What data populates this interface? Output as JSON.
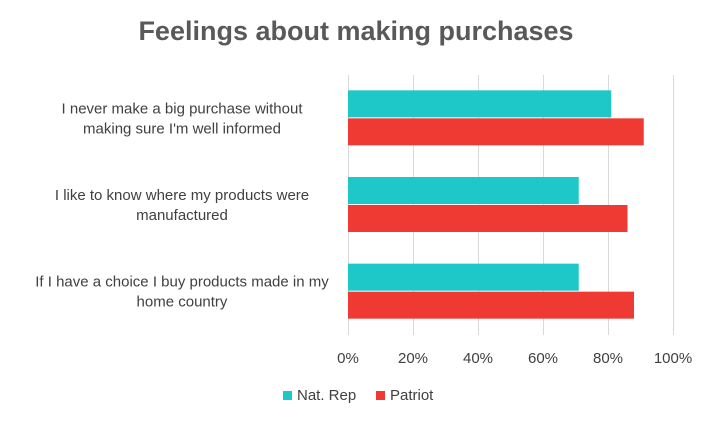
{
  "chart_data": {
    "type": "bar",
    "orientation": "horizontal",
    "title": "Feelings about making purchases",
    "categories": [
      [
        "I never make a big purchase without",
        "making sure I'm well informed"
      ],
      [
        "I like to know where my products were",
        "manufactured"
      ],
      [
        "If I have a choice I buy products made in my",
        "home country"
      ]
    ],
    "series": [
      {
        "name": "Nat. Rep",
        "color": "#1fc8c8",
        "values": [
          81,
          71,
          71
        ]
      },
      {
        "name": "Patriot",
        "color": "#ee3a33",
        "values": [
          91,
          86,
          88
        ]
      }
    ],
    "xlim": [
      0,
      100
    ],
    "xticks": [
      0,
      20,
      40,
      60,
      80,
      100
    ],
    "tick_format": "{v}%",
    "grid": true,
    "legend_position": "bottom"
  }
}
